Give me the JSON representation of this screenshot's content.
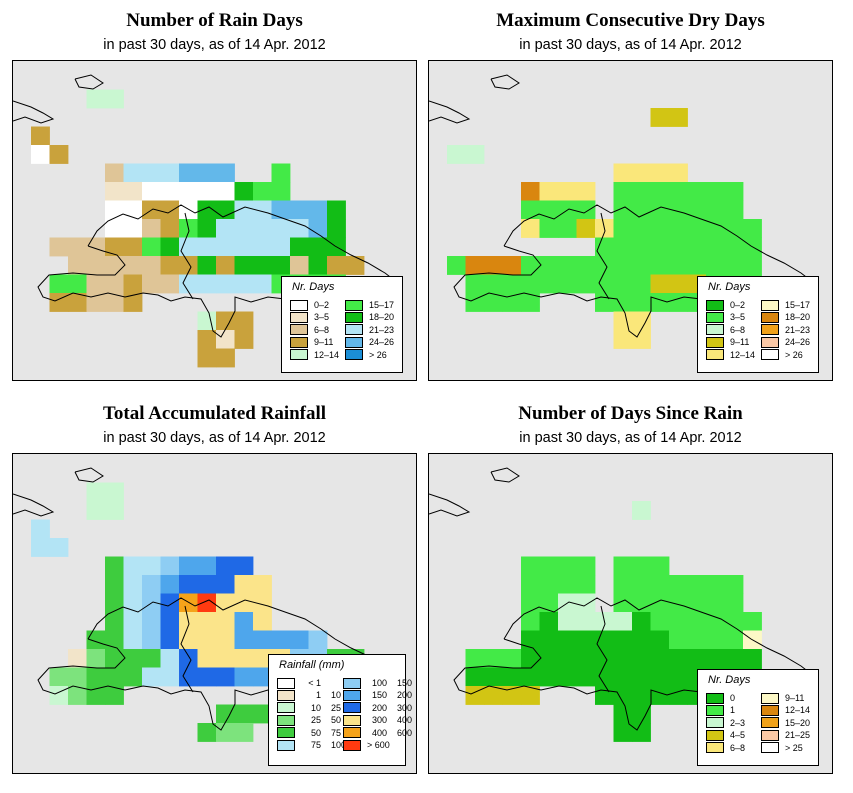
{
  "panels": [
    {
      "id": "rain-days",
      "title": "Number of Rain Days",
      "subtitle": "in past 30 days, as of  14 Apr. 2012",
      "legend_title": "Nr. Days",
      "legend_columns": 2,
      "legend": [
        {
          "label": "0–2",
          "color": "#ffffff"
        },
        {
          "label": "3–5",
          "color": "#f2e4c9"
        },
        {
          "label": "6–8",
          "color": "#dfc597"
        },
        {
          "label": "9–11",
          "color": "#c9a23c"
        },
        {
          "label": "12–14",
          "color": "#c9f7d1"
        },
        {
          "label": "15–17",
          "color": "#43ea47"
        },
        {
          "label": "18–20",
          "color": "#12bd16"
        },
        {
          "label": "21–23",
          "color": "#b3e4f5"
        },
        {
          "label": "24–26",
          "color": "#63b8ea"
        },
        {
          "label": "> 26",
          "color": "#1b8ed6"
        }
      ]
    },
    {
      "id": "max-dry-days",
      "title": "Maximum Consecutive Dry Days",
      "subtitle": "in past 30 days, as of  14 Apr. 2012",
      "legend_title": "Nr. Days",
      "legend_columns": 2,
      "legend": [
        {
          "label": "0–2",
          "color": "#12bd16"
        },
        {
          "label": "3–5",
          "color": "#43ea47"
        },
        {
          "label": "6–8",
          "color": "#c9f7d1"
        },
        {
          "label": "9–11",
          "color": "#d2c514"
        },
        {
          "label": "12–14",
          "color": "#fae77a"
        },
        {
          "label": "15–17",
          "color": "#fcf8c6"
        },
        {
          "label": "18–20",
          "color": "#d9860f"
        },
        {
          "label": "21–23",
          "color": "#f0a21a"
        },
        {
          "label": "24–26",
          "color": "#fbc8a5"
        },
        {
          "label": "> 26",
          "color": "#ffffff"
        }
      ]
    },
    {
      "id": "total-rainfall",
      "title": "Total Accumulated Rainfall",
      "subtitle": "in past 30 days, as of  14 Apr. 2012",
      "legend_title": "Rainfall (mm)",
      "legend_columns": 2,
      "legend": [
        {
          "from": "< 1",
          "to": "",
          "color": "#ffffff"
        },
        {
          "from": "1",
          "to": "10",
          "color": "#f2e4c9"
        },
        {
          "from": "10",
          "to": "25",
          "color": "#c9f7d1"
        },
        {
          "from": "25",
          "to": "50",
          "color": "#7de37d"
        },
        {
          "from": "50",
          "to": "75",
          "color": "#3ecc3e"
        },
        {
          "from": "75",
          "to": "100",
          "color": "#b3e4f5"
        },
        {
          "from": "100",
          "to": "150",
          "color": "#8ecdf3"
        },
        {
          "from": "150",
          "to": "200",
          "color": "#4ea6ec"
        },
        {
          "from": "200",
          "to": "300",
          "color": "#1f69e6"
        },
        {
          "from": "300",
          "to": "400",
          "color": "#fbe48a"
        },
        {
          "from": "400",
          "to": "600",
          "color": "#f5a31a"
        },
        {
          "from": "> 600",
          "to": "",
          "color": "#ff3a10"
        }
      ]
    },
    {
      "id": "days-since-rain",
      "title": "Number of Days Since Rain",
      "subtitle": "in past 30 days, as of  14 Apr. 2012",
      "legend_title": "Nr. Days",
      "legend_columns": 2,
      "legend": [
        {
          "label": "0",
          "color": "#12bd16"
        },
        {
          "label": "1",
          "color": "#43ea47"
        },
        {
          "label": "2–3",
          "color": "#c9f7d1"
        },
        {
          "label": "4–5",
          "color": "#d2c514"
        },
        {
          "label": "6–8",
          "color": "#fae77a"
        },
        {
          "label": "9–11",
          "color": "#fcf8c6"
        },
        {
          "label": "12–14",
          "color": "#d9860f"
        },
        {
          "label": "15–20",
          "color": "#f0a21a"
        },
        {
          "label": "21–25",
          "color": "#fbc8a5"
        },
        {
          "label": "> 25",
          "color": "#ffffff"
        }
      ]
    }
  ],
  "grids": {
    "rain-days": [
      "....................",
      "...44...............",
      "....................",
      "3...................",
      "03..................",
      "....2777888..5......",
      "....1100000655......",
      "....0033066778886...",
      "....0023567777786...",
      ".2223356777777666...",
      "..2222233636662633..",
      ".5522322777775555...",
      ".33223..........3...",
      ".........433........",
      ".........313........",
      ".........33........."
    ],
    "max-dry-days": [
      "....................",
      "....................",
      "...........33.......",
      "....................",
      "22..................",
      ".........4444.......",
      "....6444.1111111....",
      "....1111.1111111....",
      "....4113411111111...",
      "........111111111...",
      "16661111111111111...",
      ".1111111111333111...",
      ".1111...1111111.....",
      ".........44.........",
      ".........44.........",
      "...................."
    ],
    "total-rainfall": [
      "....................",
      "...22...............",
      "...22...............",
      "5...................",
      "55..................",
      "....45567788........",
      "....456788899.......",
      "....4568AB999.......",
      "....456899979.......",
      "...4456899977776....",
      "..1344458999996644..",
      ".334445588877777....",
      ".2344.........44....",
      "..........444.......",
      ".........433.........",
      "...................."
    ],
    "days-since-rain": [
      "....................",
      "....................",
      "..........2.........",
      "....................",
      "....................",
      "....1111.111........",
      "....1111.1111111....",
      "....1122.1111111....",
      "....1022220111111...",
      "....0000000011115...",
      ".1110000000000000...",
      ".0000000000000000...",
      ".3333...000000......",
      ".........00.........",
      ".........00.........",
      "...................."
    ]
  }
}
